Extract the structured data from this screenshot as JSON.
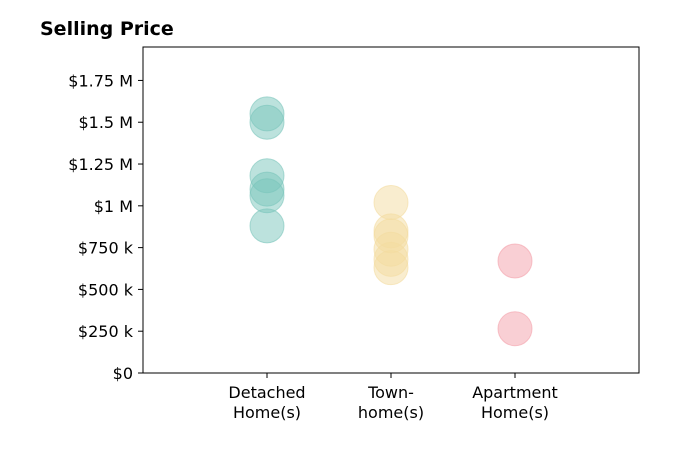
{
  "chart_data": {
    "type": "scatter",
    "title": "Selling Price",
    "xlabel": "",
    "ylabel": "",
    "categories": [
      [
        "Detached",
        "Home(s)"
      ],
      [
        "Town-",
        "home(s)"
      ],
      [
        "Apartment",
        "Home(s)"
      ]
    ],
    "ylim": [
      0,
      1950000
    ],
    "xlim": [
      0,
      4
    ],
    "y_ticks": [
      0,
      250000,
      500000,
      750000,
      1000000,
      1250000,
      1500000,
      1750000
    ],
    "y_tick_labels": [
      "$0",
      "$250 k",
      "$500 k",
      "$750 k",
      "$1 M",
      "$1.25 M",
      "$1.5 M",
      "$1.75 M"
    ],
    "grid": false,
    "legend": "none",
    "series": [
      {
        "category_index": 0,
        "color": "#7ac5bb",
        "values": [
          1550000,
          1500000,
          1180000,
          1100000,
          1060000,
          880000
        ]
      },
      {
        "category_index": 1,
        "color": "#f3dca0",
        "values": [
          1020000,
          850000,
          820000,
          740000,
          680000,
          630000
        ]
      },
      {
        "category_index": 2,
        "color": "#f3a0aa",
        "values": [
          670000,
          265000
        ]
      }
    ]
  }
}
